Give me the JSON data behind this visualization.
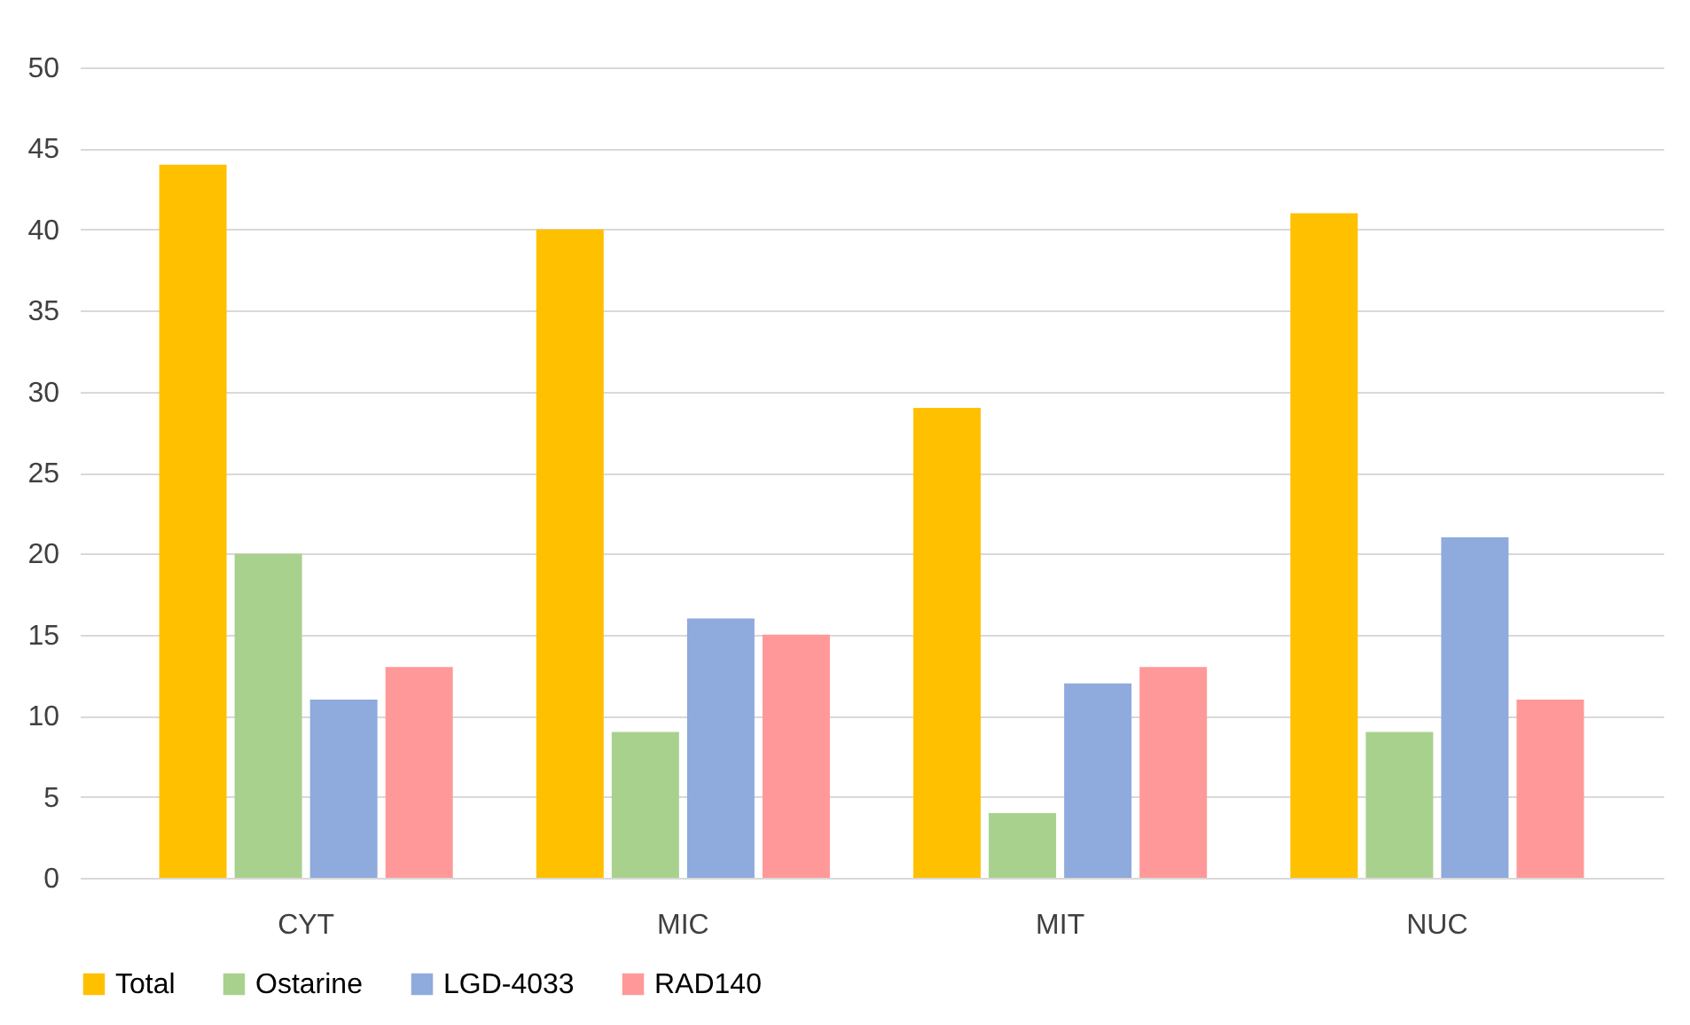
{
  "chart_data": {
    "type": "bar",
    "categories": [
      "CYT",
      "MIC",
      "MIT",
      "NUC"
    ],
    "series": [
      {
        "name": "Total",
        "color": "#ffc000",
        "values": [
          44,
          40,
          29,
          41
        ]
      },
      {
        "name": "Ostarine",
        "color": "#a9d18e",
        "values": [
          20,
          9,
          4,
          9
        ]
      },
      {
        "name": "LGD-4033",
        "color": "#8faadc",
        "values": [
          11,
          16,
          12,
          21
        ]
      },
      {
        "name": "RAD140",
        "color": "#ff9999",
        "values": [
          13,
          15,
          13,
          11
        ]
      }
    ],
    "ylim": [
      0,
      50
    ],
    "yticks": [
      0,
      5,
      10,
      15,
      20,
      25,
      30,
      35,
      40,
      45,
      50
    ],
    "grid": "y",
    "legend": "bottom"
  }
}
